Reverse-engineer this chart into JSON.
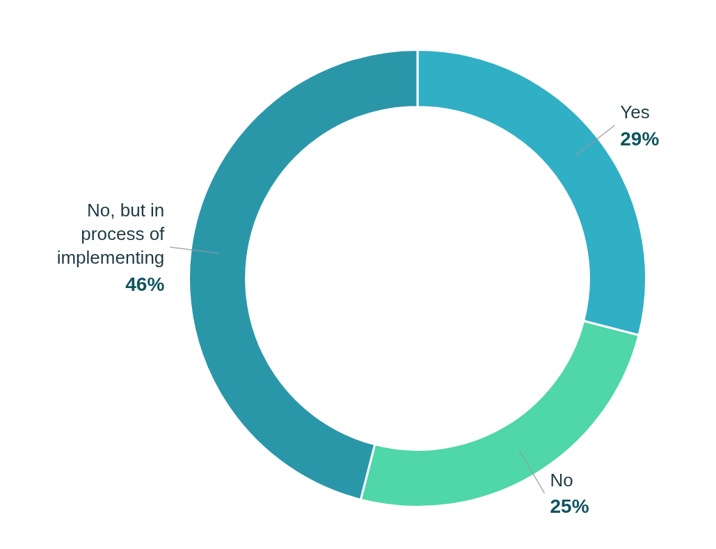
{
  "chart_data": {
    "type": "donut",
    "categories": [
      "Yes",
      "No",
      "No, but in process of implementing"
    ],
    "values": [
      29,
      25,
      46
    ],
    "colors": [
      "#31afc4",
      "#4fd6a9",
      "#2a97a9"
    ],
    "value_labels": [
      "29%",
      "25%",
      "46%"
    ],
    "legend": false
  }
}
